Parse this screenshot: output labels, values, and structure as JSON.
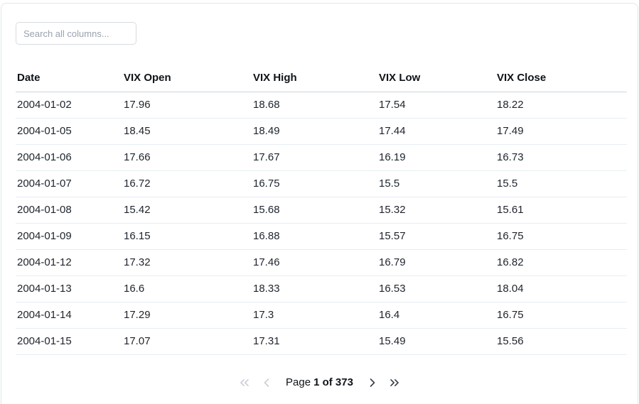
{
  "search": {
    "placeholder": "Search all columns..."
  },
  "table": {
    "columns": [
      "Date",
      "VIX Open",
      "VIX High",
      "VIX Low",
      "VIX Close"
    ],
    "rows": [
      [
        "2004-01-02",
        "17.96",
        "18.68",
        "17.54",
        "18.22"
      ],
      [
        "2004-01-05",
        "18.45",
        "18.49",
        "17.44",
        "17.49"
      ],
      [
        "2004-01-06",
        "17.66",
        "17.67",
        "16.19",
        "16.73"
      ],
      [
        "2004-01-07",
        "16.72",
        "16.75",
        "15.5",
        "15.5"
      ],
      [
        "2004-01-08",
        "15.42",
        "15.68",
        "15.32",
        "15.61"
      ],
      [
        "2004-01-09",
        "16.15",
        "16.88",
        "15.57",
        "16.75"
      ],
      [
        "2004-01-12",
        "17.32",
        "17.46",
        "16.79",
        "16.82"
      ],
      [
        "2004-01-13",
        "16.6",
        "18.33",
        "16.53",
        "18.04"
      ],
      [
        "2004-01-14",
        "17.29",
        "17.3",
        "16.4",
        "16.75"
      ],
      [
        "2004-01-15",
        "17.07",
        "17.31",
        "15.49",
        "15.56"
      ]
    ]
  },
  "pagination": {
    "label_prefix": "Page",
    "current_page": "1",
    "total_pages": "373",
    "current_display": "1 of 373",
    "first_enabled": false,
    "prev_enabled": false,
    "next_enabled": true,
    "last_enabled": true
  },
  "colors": {
    "card_border": "#e0e7ea",
    "header_divider": "#ccd7de",
    "row_divider": "#e7eef3",
    "heading_text": "#0f1419",
    "body_text": "#1e242c",
    "placeholder_text": "#9aa2ae",
    "input_border": "#d6dce2",
    "pager_disabled": "#c9cfd6",
    "pager_enabled": "#3a414c"
  }
}
